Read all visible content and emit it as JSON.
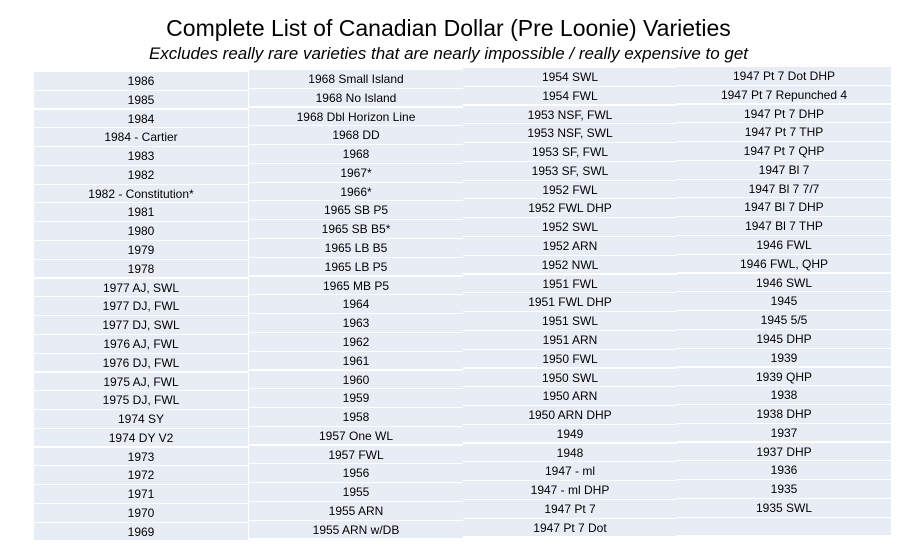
{
  "title": "Complete List of Canadian Dollar (Pre Loonie) Varieties",
  "subtitle": "Excludes really rare varieties that are nearly impossible / really expensive to get",
  "columns": [
    [
      "1986",
      "1985",
      "1984",
      "1984 - Cartier",
      "1983",
      "1982",
      "1982 - Constitution*",
      "1981",
      "1980",
      "1979",
      "1978",
      "1977 AJ, SWL",
      "1977 DJ, FWL",
      "1977 DJ, SWL",
      "1976 AJ, FWL",
      "1976 DJ, FWL",
      "1975 AJ, FWL",
      "1975 DJ, FWL",
      "1974 SY",
      "1974 DY V2",
      "1973",
      "1972",
      "1971",
      "1970",
      "1969"
    ],
    [
      "1968 Small Island",
      "1968 No Island",
      "1968 Dbl Horizon Line",
      "1968 DD",
      "1968",
      "1967*",
      "1966*",
      "1965 SB P5",
      "1965 SB B5*",
      "1965 LB B5",
      "1965 LB P5",
      "1965 MB P5",
      "1964",
      "1963",
      "1962",
      "1961",
      "1960",
      "1959",
      "1958",
      "1957 One WL",
      "1957 FWL",
      "1956",
      "1955",
      "1955 ARN",
      "1955 ARN w/DB"
    ],
    [
      "1954 SWL",
      "1954 FWL",
      "1953 NSF, FWL",
      "1953 NSF, SWL",
      "1953 SF, FWL",
      "1953 SF, SWL",
      "1952 FWL",
      "1952 FWL DHP",
      "1952 SWL",
      "1952 ARN",
      "1952 NWL",
      "1951 FWL",
      "1951 FWL DHP",
      "1951 SWL",
      "1951 ARN",
      "1950 FWL",
      "1950 SWL",
      "1950 ARN",
      "1950 ARN DHP",
      "1949",
      "1948",
      "1947 - ml",
      "1947 - ml DHP",
      "1947 Pt 7",
      "1947 Pt 7 Dot"
    ],
    [
      "1947 Pt 7 Dot DHP",
      "1947 Pt 7 Repunched 4",
      "1947 Pt 7 DHP",
      "1947 Pt 7 THP",
      "1947 Pt 7 QHP",
      "1947 Bl 7",
      "1947 Bl 7 7/7",
      "1947 Bl 7 DHP",
      "1947 Bl 7 THP",
      "1946 FWL",
      "1946 FWL, QHP",
      "1946 SWL",
      "1945",
      "1945 5/5",
      "1945 DHP",
      "1939",
      "1939 QHP",
      "1938",
      "1938 DHP",
      "1937",
      "1937 DHP",
      "1936",
      "1935",
      "1935 SWL",
      ""
    ]
  ]
}
